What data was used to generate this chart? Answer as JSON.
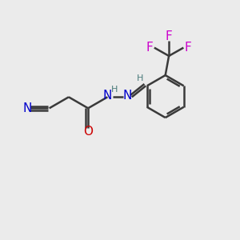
{
  "bg_color": "#ebebeb",
  "bond_color": "#3a3a3a",
  "N_color": "#0000cc",
  "O_color": "#cc0000",
  "F_color": "#cc00cc",
  "C_color": "#3a3a3a",
  "teal_color": "#4a7a7a",
  "line_width": 1.8,
  "font_size_atom": 11,
  "font_size_small": 8,
  "figsize": [
    3.0,
    3.0
  ],
  "dpi": 100,
  "xlim": [
    0,
    10
  ],
  "ylim": [
    0,
    10
  ]
}
